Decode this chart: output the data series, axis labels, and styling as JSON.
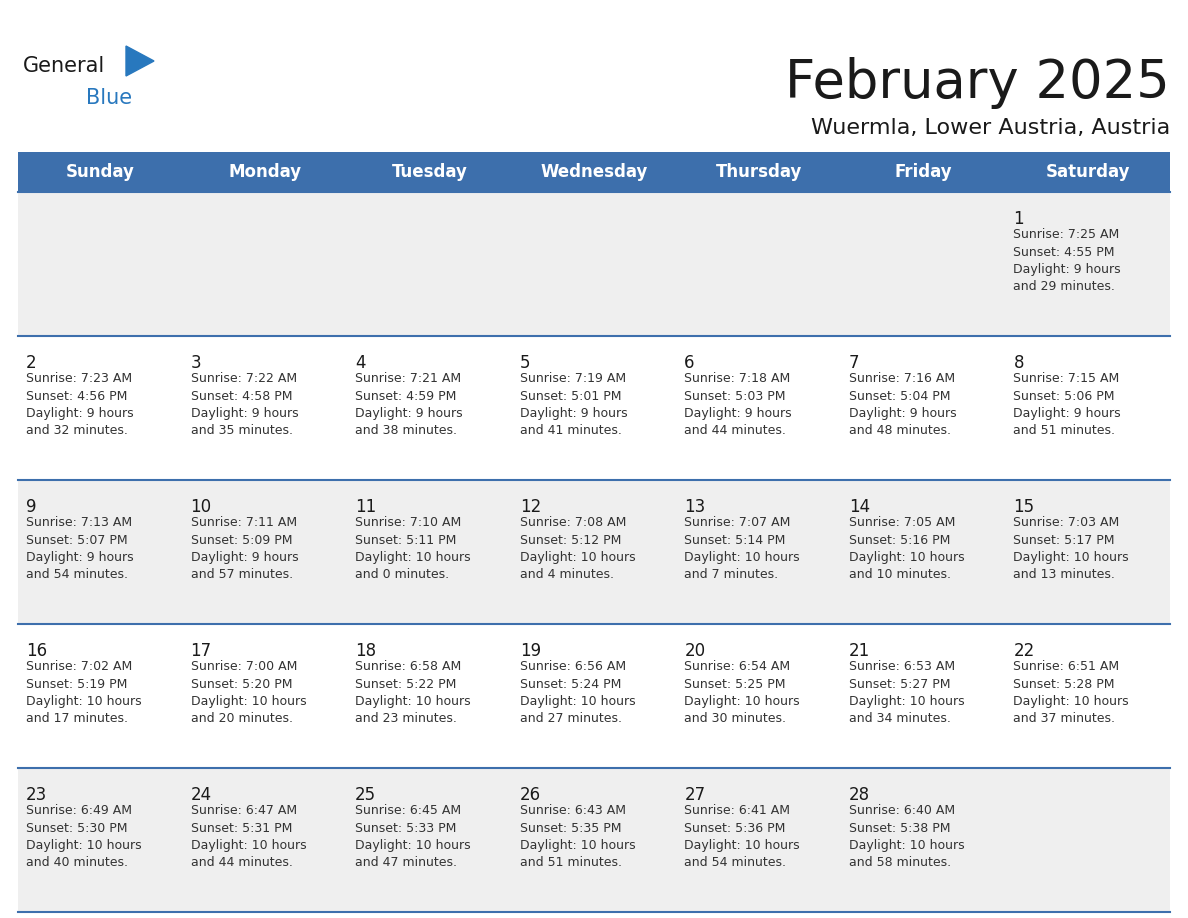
{
  "title": "February 2025",
  "subtitle": "Wuermla, Lower Austria, Austria",
  "header_bg": "#3d6fac",
  "header_text_color": "#FFFFFF",
  "cell_bg_light": "#EFEFEF",
  "cell_bg_white": "#FFFFFF",
  "border_color": "#3d6fac",
  "day_names": [
    "Sunday",
    "Monday",
    "Tuesday",
    "Wednesday",
    "Thursday",
    "Friday",
    "Saturday"
  ],
  "title_color": "#1a1a1a",
  "subtitle_color": "#1a1a1a",
  "day_number_color": "#1a1a1a",
  "info_color": "#333333",
  "logo_general_color": "#1a1a1a",
  "logo_blue_color": "#2878be",
  "weeks": [
    [
      {
        "day": null,
        "info": ""
      },
      {
        "day": null,
        "info": ""
      },
      {
        "day": null,
        "info": ""
      },
      {
        "day": null,
        "info": ""
      },
      {
        "day": null,
        "info": ""
      },
      {
        "day": null,
        "info": ""
      },
      {
        "day": 1,
        "info": "Sunrise: 7:25 AM\nSunset: 4:55 PM\nDaylight: 9 hours\nand 29 minutes."
      }
    ],
    [
      {
        "day": 2,
        "info": "Sunrise: 7:23 AM\nSunset: 4:56 PM\nDaylight: 9 hours\nand 32 minutes."
      },
      {
        "day": 3,
        "info": "Sunrise: 7:22 AM\nSunset: 4:58 PM\nDaylight: 9 hours\nand 35 minutes."
      },
      {
        "day": 4,
        "info": "Sunrise: 7:21 AM\nSunset: 4:59 PM\nDaylight: 9 hours\nand 38 minutes."
      },
      {
        "day": 5,
        "info": "Sunrise: 7:19 AM\nSunset: 5:01 PM\nDaylight: 9 hours\nand 41 minutes."
      },
      {
        "day": 6,
        "info": "Sunrise: 7:18 AM\nSunset: 5:03 PM\nDaylight: 9 hours\nand 44 minutes."
      },
      {
        "day": 7,
        "info": "Sunrise: 7:16 AM\nSunset: 5:04 PM\nDaylight: 9 hours\nand 48 minutes."
      },
      {
        "day": 8,
        "info": "Sunrise: 7:15 AM\nSunset: 5:06 PM\nDaylight: 9 hours\nand 51 minutes."
      }
    ],
    [
      {
        "day": 9,
        "info": "Sunrise: 7:13 AM\nSunset: 5:07 PM\nDaylight: 9 hours\nand 54 minutes."
      },
      {
        "day": 10,
        "info": "Sunrise: 7:11 AM\nSunset: 5:09 PM\nDaylight: 9 hours\nand 57 minutes."
      },
      {
        "day": 11,
        "info": "Sunrise: 7:10 AM\nSunset: 5:11 PM\nDaylight: 10 hours\nand 0 minutes."
      },
      {
        "day": 12,
        "info": "Sunrise: 7:08 AM\nSunset: 5:12 PM\nDaylight: 10 hours\nand 4 minutes."
      },
      {
        "day": 13,
        "info": "Sunrise: 7:07 AM\nSunset: 5:14 PM\nDaylight: 10 hours\nand 7 minutes."
      },
      {
        "day": 14,
        "info": "Sunrise: 7:05 AM\nSunset: 5:16 PM\nDaylight: 10 hours\nand 10 minutes."
      },
      {
        "day": 15,
        "info": "Sunrise: 7:03 AM\nSunset: 5:17 PM\nDaylight: 10 hours\nand 13 minutes."
      }
    ],
    [
      {
        "day": 16,
        "info": "Sunrise: 7:02 AM\nSunset: 5:19 PM\nDaylight: 10 hours\nand 17 minutes."
      },
      {
        "day": 17,
        "info": "Sunrise: 7:00 AM\nSunset: 5:20 PM\nDaylight: 10 hours\nand 20 minutes."
      },
      {
        "day": 18,
        "info": "Sunrise: 6:58 AM\nSunset: 5:22 PM\nDaylight: 10 hours\nand 23 minutes."
      },
      {
        "day": 19,
        "info": "Sunrise: 6:56 AM\nSunset: 5:24 PM\nDaylight: 10 hours\nand 27 minutes."
      },
      {
        "day": 20,
        "info": "Sunrise: 6:54 AM\nSunset: 5:25 PM\nDaylight: 10 hours\nand 30 minutes."
      },
      {
        "day": 21,
        "info": "Sunrise: 6:53 AM\nSunset: 5:27 PM\nDaylight: 10 hours\nand 34 minutes."
      },
      {
        "day": 22,
        "info": "Sunrise: 6:51 AM\nSunset: 5:28 PM\nDaylight: 10 hours\nand 37 minutes."
      }
    ],
    [
      {
        "day": 23,
        "info": "Sunrise: 6:49 AM\nSunset: 5:30 PM\nDaylight: 10 hours\nand 40 minutes."
      },
      {
        "day": 24,
        "info": "Sunrise: 6:47 AM\nSunset: 5:31 PM\nDaylight: 10 hours\nand 44 minutes."
      },
      {
        "day": 25,
        "info": "Sunrise: 6:45 AM\nSunset: 5:33 PM\nDaylight: 10 hours\nand 47 minutes."
      },
      {
        "day": 26,
        "info": "Sunrise: 6:43 AM\nSunset: 5:35 PM\nDaylight: 10 hours\nand 51 minutes."
      },
      {
        "day": 27,
        "info": "Sunrise: 6:41 AM\nSunset: 5:36 PM\nDaylight: 10 hours\nand 54 minutes."
      },
      {
        "day": 28,
        "info": "Sunrise: 6:40 AM\nSunset: 5:38 PM\nDaylight: 10 hours\nand 58 minutes."
      },
      {
        "day": null,
        "info": ""
      }
    ]
  ]
}
